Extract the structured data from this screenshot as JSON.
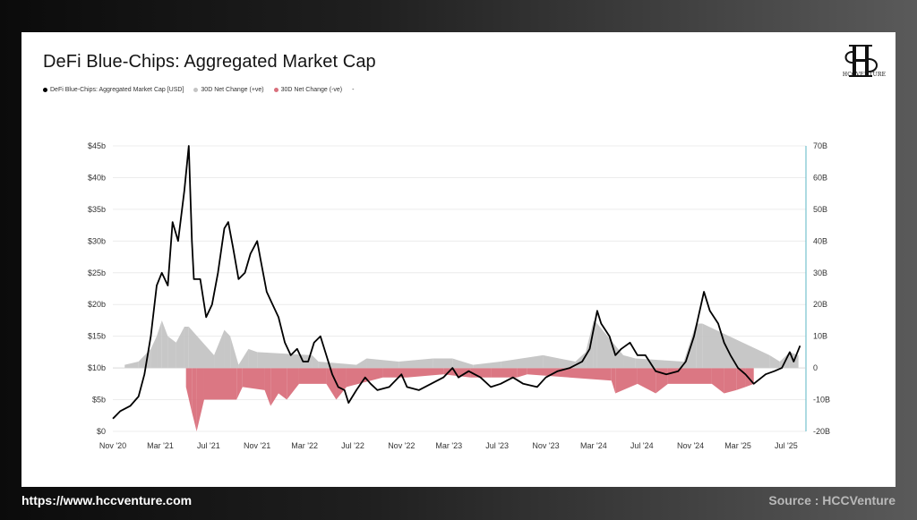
{
  "footer": {
    "url": "https://www.hccventure.com",
    "source": "Source : HCCVenture"
  },
  "logo": {
    "text": "HCCVENTURE",
    "icon": "hs-monogram-icon"
  },
  "colors": {
    "line": "#000000",
    "positive": "#c4c4c4",
    "negative": "#d9707c",
    "right_axis": "#5bb7c6"
  },
  "chart_data": {
    "type": "line",
    "title": "DeFi Blue-Chips: Aggregated Market Cap",
    "legend": [
      "DeFi Blue-Chips: Aggregated Market Cap [USD]",
      "30D Net Change (+ve)",
      "30D Net Change (-ve)",
      "-"
    ],
    "legend_placement": "top-left",
    "grid": true,
    "x_ticks": [
      "Nov '20",
      "Mar '21",
      "Jul '21",
      "Nov '21",
      "Mar '22",
      "Jul '22",
      "Nov '22",
      "Mar '23",
      "Jul '23",
      "Nov '23",
      "Mar '24",
      "Jul '24",
      "Nov '24",
      "Mar '25",
      "Jul '25"
    ],
    "y_left_ticks": [
      "$0",
      "$5b",
      "$10b",
      "$15b",
      "$20b",
      "$25b",
      "$30b",
      "$35b",
      "$40b",
      "$45b"
    ],
    "y_left_range": [
      0,
      45
    ],
    "y_right_ticks": [
      "-20B",
      "-10B",
      "0",
      "10B",
      "20B",
      "30B",
      "40B",
      "50B",
      "60B",
      "70B"
    ],
    "y_right_range": [
      -20,
      70
    ],
    "series": [
      {
        "name": "DeFi Blue-Chips: Aggregated Market Cap [USD]",
        "unit": "USD billions",
        "points": [
          [
            "2020-11-01",
            2.0
          ],
          [
            "2020-11-20",
            3.2
          ],
          [
            "2020-12-15",
            4.0
          ],
          [
            "2021-01-05",
            5.5
          ],
          [
            "2021-01-20",
            9.0
          ],
          [
            "2021-02-05",
            15.0
          ],
          [
            "2021-02-20",
            23.0
          ],
          [
            "2021-03-05",
            25.0
          ],
          [
            "2021-03-20",
            23.0
          ],
          [
            "2021-04-01",
            33.0
          ],
          [
            "2021-04-15",
            30.0
          ],
          [
            "2021-05-01",
            38.0
          ],
          [
            "2021-05-12",
            45.0
          ],
          [
            "2021-05-20",
            30.0
          ],
          [
            "2021-05-25",
            24.0
          ],
          [
            "2021-06-10",
            24.0
          ],
          [
            "2021-06-25",
            18.0
          ],
          [
            "2021-07-10",
            20.0
          ],
          [
            "2021-07-25",
            25.0
          ],
          [
            "2021-08-10",
            32.0
          ],
          [
            "2021-08-20",
            33.0
          ],
          [
            "2021-09-01",
            29.0
          ],
          [
            "2021-09-15",
            24.0
          ],
          [
            "2021-10-01",
            25.0
          ],
          [
            "2021-10-15",
            28.0
          ],
          [
            "2021-11-01",
            30.0
          ],
          [
            "2021-11-10",
            27.0
          ],
          [
            "2021-11-25",
            22.0
          ],
          [
            "2021-12-10",
            20.0
          ],
          [
            "2021-12-25",
            18.0
          ],
          [
            "2022-01-10",
            14.0
          ],
          [
            "2022-01-25",
            12.0
          ],
          [
            "2022-02-10",
            13.0
          ],
          [
            "2022-02-25",
            11.0
          ],
          [
            "2022-03-10",
            11.0
          ],
          [
            "2022-03-25",
            14.0
          ],
          [
            "2022-04-10",
            15.0
          ],
          [
            "2022-04-25",
            12.0
          ],
          [
            "2022-05-10",
            9.0
          ],
          [
            "2022-05-25",
            7.0
          ],
          [
            "2022-06-10",
            6.5
          ],
          [
            "2022-06-20",
            4.5
          ],
          [
            "2022-07-10",
            6.5
          ],
          [
            "2022-08-01",
            8.5
          ],
          [
            "2022-08-15",
            7.5
          ],
          [
            "2022-09-01",
            6.5
          ],
          [
            "2022-10-01",
            7.0
          ],
          [
            "2022-11-01",
            9.0
          ],
          [
            "2022-11-15",
            7.0
          ],
          [
            "2022-12-15",
            6.5
          ],
          [
            "2023-01-15",
            7.5
          ],
          [
            "2023-02-15",
            8.5
          ],
          [
            "2023-03-10",
            10.0
          ],
          [
            "2023-03-25",
            8.5
          ],
          [
            "2023-04-20",
            9.5
          ],
          [
            "2023-05-20",
            8.5
          ],
          [
            "2023-06-15",
            7.0
          ],
          [
            "2023-07-10",
            7.5
          ],
          [
            "2023-08-10",
            8.5
          ],
          [
            "2023-09-05",
            7.5
          ],
          [
            "2023-10-10",
            7.0
          ],
          [
            "2023-11-01",
            8.5
          ],
          [
            "2023-12-01",
            9.5
          ],
          [
            "2024-01-01",
            10.0
          ],
          [
            "2024-02-01",
            11.0
          ],
          [
            "2024-02-20",
            13.0
          ],
          [
            "2024-03-10",
            19.0
          ],
          [
            "2024-03-20",
            17.0
          ],
          [
            "2024-04-10",
            15.0
          ],
          [
            "2024-04-25",
            12.0
          ],
          [
            "2024-05-10",
            13.0
          ],
          [
            "2024-06-01",
            14.0
          ],
          [
            "2024-06-20",
            12.0
          ],
          [
            "2024-07-10",
            12.0
          ],
          [
            "2024-08-05",
            9.5
          ],
          [
            "2024-09-01",
            9.0
          ],
          [
            "2024-10-01",
            9.5
          ],
          [
            "2024-10-20",
            11.0
          ],
          [
            "2024-11-10",
            15.0
          ],
          [
            "2024-12-05",
            22.0
          ],
          [
            "2024-12-20",
            19.0
          ],
          [
            "2025-01-10",
            17.0
          ],
          [
            "2025-01-25",
            14.0
          ],
          [
            "2025-02-10",
            12.0
          ],
          [
            "2025-03-01",
            10.0
          ],
          [
            "2025-03-20",
            9.0
          ],
          [
            "2025-04-10",
            7.5
          ],
          [
            "2025-05-10",
            9.0
          ],
          [
            "2025-06-01",
            9.5
          ],
          [
            "2025-06-20",
            10.0
          ],
          [
            "2025-07-10",
            12.5
          ],
          [
            "2025-07-20",
            11.0
          ],
          [
            "2025-08-05",
            13.5
          ]
        ]
      },
      {
        "name": "30D Net Change (+ve)",
        "unit": "USD billions",
        "points": [
          [
            "2020-12-01",
            1
          ],
          [
            "2021-01-05",
            2
          ],
          [
            "2021-02-05",
            6
          ],
          [
            "2021-02-20",
            10
          ],
          [
            "2021-03-05",
            15
          ],
          [
            "2021-03-20",
            10
          ],
          [
            "2021-04-10",
            8
          ],
          [
            "2021-05-01",
            13
          ],
          [
            "2021-05-12",
            13
          ],
          [
            "2021-07-15",
            4
          ],
          [
            "2021-08-10",
            12
          ],
          [
            "2021-08-25",
            10
          ],
          [
            "2021-09-15",
            1
          ],
          [
            "2021-10-10",
            6
          ],
          [
            "2021-11-01",
            5
          ],
          [
            "2022-03-20",
            4
          ],
          [
            "2022-04-05",
            2
          ],
          [
            "2022-07-10",
            1
          ],
          [
            "2022-08-05",
            3
          ],
          [
            "2022-10-25",
            2
          ],
          [
            "2023-01-20",
            3
          ],
          [
            "2023-03-10",
            3
          ],
          [
            "2023-05-01",
            1
          ],
          [
            "2023-07-10",
            2
          ],
          [
            "2023-10-25",
            4
          ],
          [
            "2023-12-05",
            3
          ],
          [
            "2024-01-15",
            2
          ],
          [
            "2024-02-10",
            5
          ],
          [
            "2024-03-01",
            15
          ],
          [
            "2024-03-10",
            14
          ],
          [
            "2024-05-15",
            4
          ],
          [
            "2024-06-15",
            3
          ],
          [
            "2024-10-15",
            2
          ],
          [
            "2024-11-15",
            14
          ],
          [
            "2024-12-01",
            14
          ],
          [
            "2025-05-20",
            4
          ],
          [
            "2025-06-15",
            2
          ],
          [
            "2025-07-10",
            5
          ],
          [
            "2025-08-01",
            4
          ]
        ]
      },
      {
        "name": "30D Net Change (-ve)",
        "unit": "USD billions",
        "points": [
          [
            "2021-05-05",
            -6
          ],
          [
            "2021-05-20",
            -14
          ],
          [
            "2021-06-01",
            -20
          ],
          [
            "2021-06-20",
            -10
          ],
          [
            "2021-09-10",
            -10
          ],
          [
            "2021-09-25",
            -6
          ],
          [
            "2021-11-20",
            -7
          ],
          [
            "2021-12-05",
            -12
          ],
          [
            "2021-12-25",
            -8
          ],
          [
            "2022-01-15",
            -10
          ],
          [
            "2022-02-15",
            -5
          ],
          [
            "2022-04-25",
            -5
          ],
          [
            "2022-05-20",
            -10
          ],
          [
            "2022-06-15",
            -6
          ],
          [
            "2022-09-15",
            -3
          ],
          [
            "2022-11-15",
            -3
          ],
          [
            "2023-02-15",
            -2
          ],
          [
            "2023-04-25",
            -3
          ],
          [
            "2023-06-15",
            -3
          ],
          [
            "2023-08-20",
            -3
          ],
          [
            "2023-09-15",
            -2
          ],
          [
            "2024-04-15",
            -4
          ],
          [
            "2024-04-25",
            -8
          ],
          [
            "2024-06-20",
            -5
          ],
          [
            "2024-08-05",
            -8
          ],
          [
            "2024-09-05",
            -5
          ],
          [
            "2024-12-25",
            -5
          ],
          [
            "2025-01-25",
            -8
          ],
          [
            "2025-02-25",
            -7
          ],
          [
            "2025-03-20",
            -6
          ],
          [
            "2025-04-10",
            -5
          ]
        ]
      }
    ]
  }
}
